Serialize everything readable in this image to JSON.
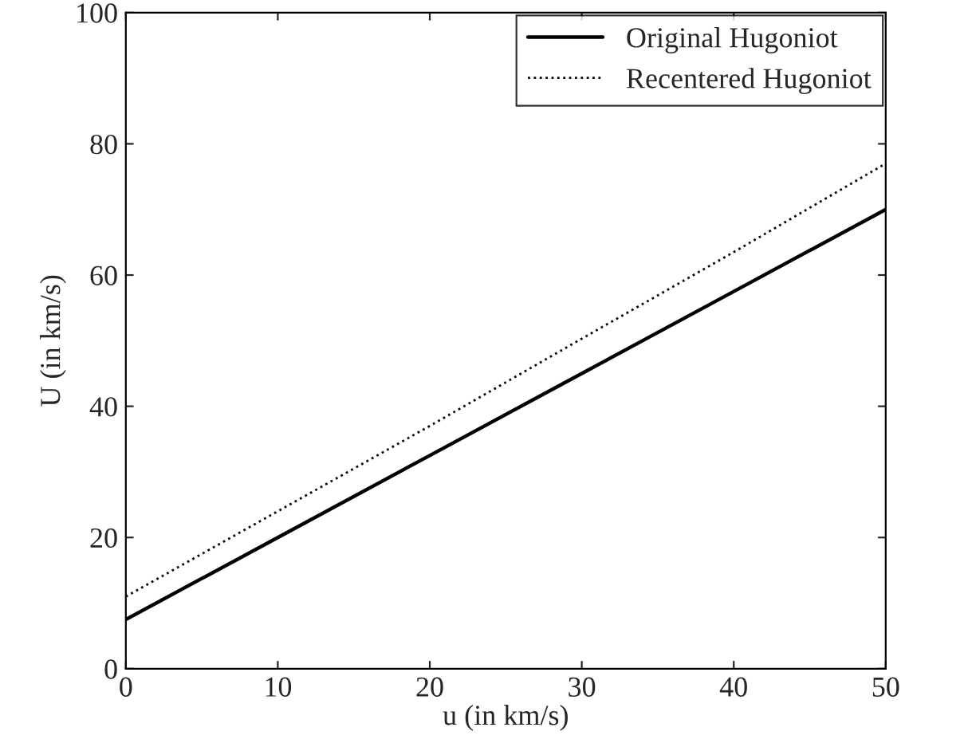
{
  "chart_data": {
    "type": "line",
    "xlabel": "u (in km/s)",
    "ylabel": "U (in km/s)",
    "x": [
      0,
      10,
      20,
      30,
      40,
      50
    ],
    "series": [
      {
        "name": "Original Hugoniot",
        "color": "#000000",
        "line_style": "solid",
        "values": [
          7.5,
          20,
          32.5,
          45,
          57.5,
          70
        ]
      },
      {
        "name": "Recentered Hugoniot",
        "color": "#000000",
        "line_style": "dotted",
        "values": [
          11,
          24,
          37,
          50.3,
          63.5,
          77
        ]
      }
    ],
    "xlim": [
      0,
      50
    ],
    "ylim": [
      0,
      100
    ],
    "xticks": [
      0,
      10,
      20,
      30,
      40,
      50
    ],
    "yticks": [
      0,
      20,
      40,
      60,
      80,
      100
    ],
    "grid": false,
    "legend": "top right",
    "marker": "none"
  }
}
